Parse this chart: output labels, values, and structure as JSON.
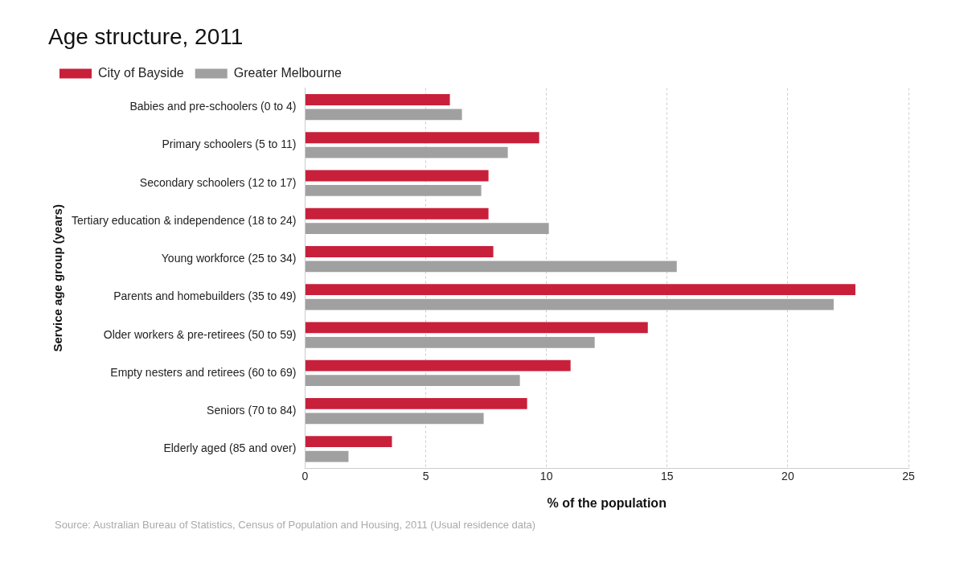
{
  "chart_data": {
    "type": "bar",
    "orientation": "horizontal",
    "title": "Age structure, 2011",
    "xlabel": "% of the population",
    "ylabel": "Service age group (years)",
    "categories": [
      "Babies and pre-schoolers (0 to 4)",
      "Primary schoolers (5 to 11)",
      "Secondary schoolers (12 to 17)",
      "Tertiary education & independence (18 to 24)",
      "Young workforce (25 to 34)",
      "Parents and homebuilders (35 to 49)",
      "Older workers & pre-retirees (50 to 59)",
      "Empty nesters and retirees (60 to 69)",
      "Seniors (70 to 84)",
      "Elderly aged (85 and over)"
    ],
    "series": [
      {
        "name": "City of Bayside",
        "color": "#c8203a",
        "values": [
          6.0,
          9.7,
          7.6,
          7.6,
          7.8,
          22.8,
          14.2,
          11.0,
          9.2,
          3.6
        ]
      },
      {
        "name": "Greater Melbourne",
        "color": "#a0a0a0",
        "values": [
          6.5,
          8.4,
          7.3,
          10.1,
          15.4,
          21.9,
          12.0,
          8.9,
          7.4,
          1.8
        ]
      }
    ],
    "xlim": [
      0,
      25
    ],
    "xticks": [
      0,
      5,
      10,
      15,
      20,
      25
    ],
    "grid": "x",
    "legend": "top left",
    "annotations": [
      "Source: Australian Bureau of Statistics, Census of Population and Housing, 2011 (Usual residence data)"
    ]
  }
}
